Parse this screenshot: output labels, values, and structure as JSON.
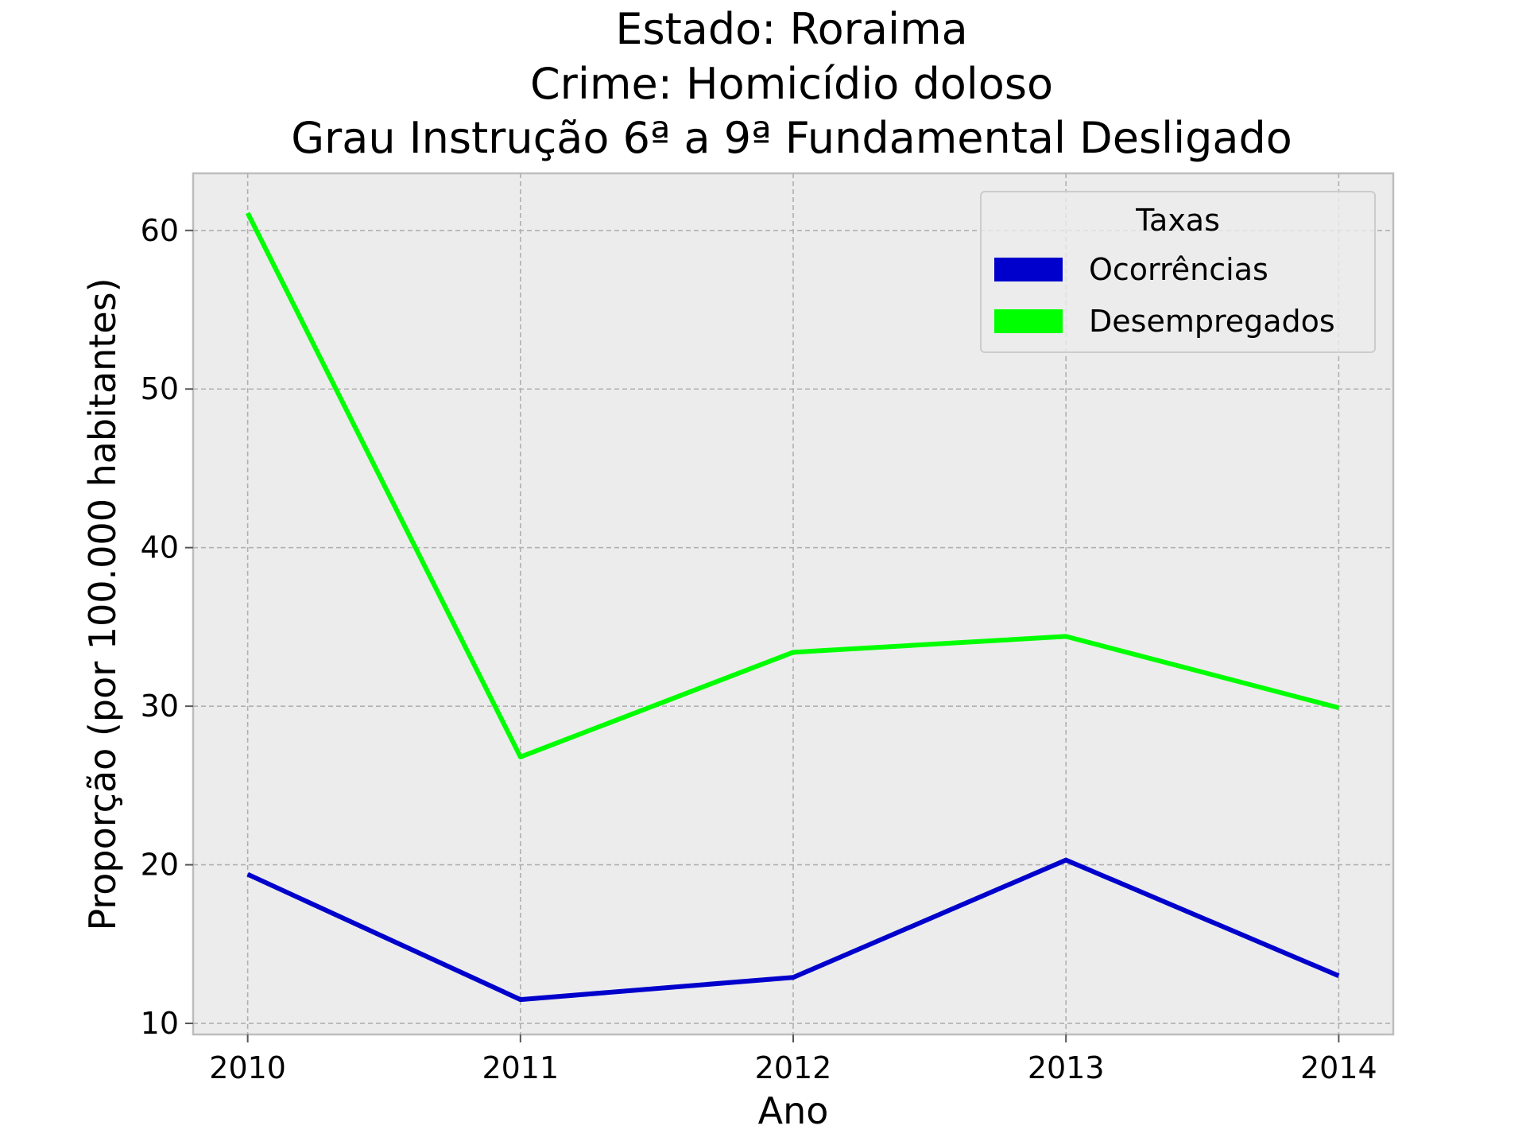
{
  "chart_data": {
    "type": "line",
    "title_lines": [
      "Estado: Roraima",
      "Crime: Homicídio doloso",
      "Grau Instrução  6ª a 9ª Fundamental   Desligado"
    ],
    "xlabel": "Ano",
    "ylabel": "Proporção (por 100.000 habitantes)",
    "x": [
      2010,
      2011,
      2012,
      2013,
      2014
    ],
    "x_tick_labels": [
      "2010",
      "2011",
      "2012",
      "2013",
      "2014"
    ],
    "xlim": [
      2009.8,
      2014.2
    ],
    "ylim": [
      9.3,
      63.6
    ],
    "y_ticks": [
      10,
      20,
      30,
      40,
      50,
      60
    ],
    "y_tick_labels": [
      "10",
      "20",
      "30",
      "40",
      "50",
      "60"
    ],
    "grid": true,
    "background_color": "#ececec",
    "legend": {
      "title": "Taxas",
      "placement": "top-right"
    },
    "series": [
      {
        "name": "Ocorrências",
        "color": "#0000cc",
        "values": [
          19.4,
          11.5,
          12.9,
          20.3,
          13.0
        ]
      },
      {
        "name": "Desempregados",
        "color": "#00ff00",
        "values": [
          61.1,
          26.8,
          33.4,
          34.4,
          29.9
        ]
      }
    ]
  }
}
